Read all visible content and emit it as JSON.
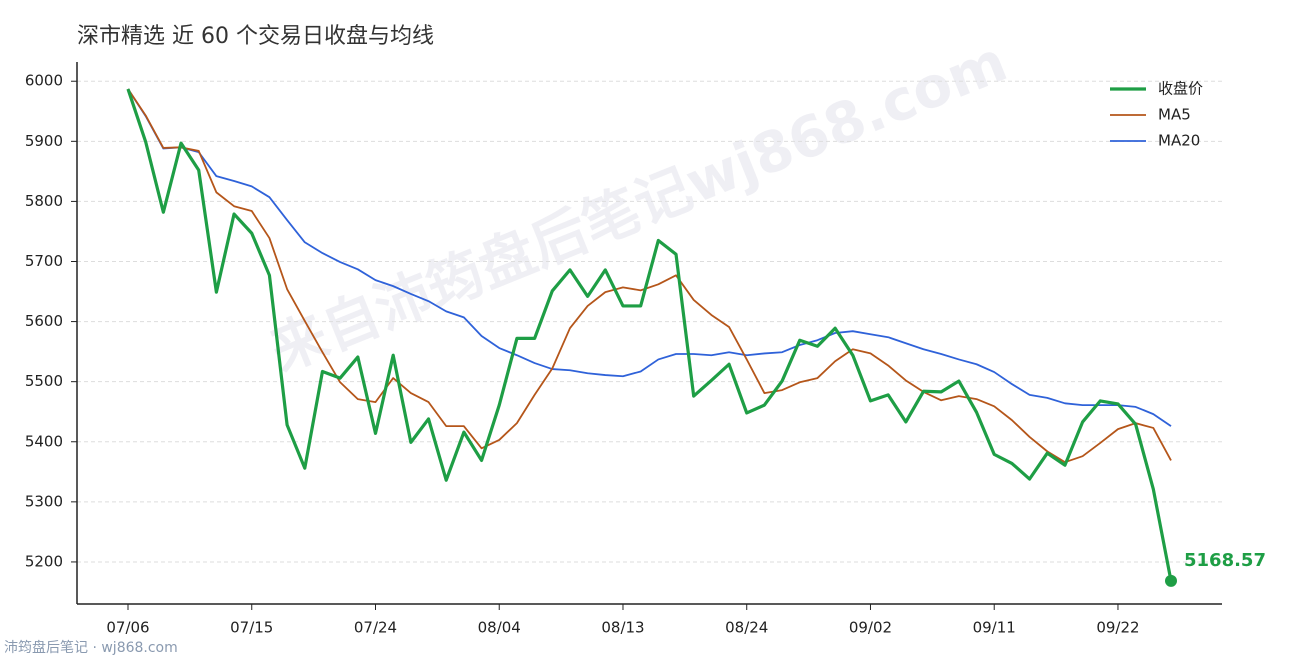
{
  "chart_data": {
    "type": "line",
    "title": "深市精选 近 60 个交易日收盘与均线",
    "watermark": "来自沛筠盘后笔记wj868.com",
    "source": "沛筠盘后笔记 · wj868.com",
    "categories": [
      "07/06",
      null,
      null,
      null,
      null,
      null,
      null,
      "07/15",
      null,
      null,
      null,
      null,
      null,
      null,
      "07/24",
      null,
      null,
      null,
      null,
      null,
      null,
      "08/04",
      null,
      null,
      null,
      null,
      null,
      null,
      "08/13",
      null,
      null,
      null,
      null,
      null,
      null,
      "08/24",
      null,
      null,
      null,
      null,
      null,
      null,
      "09/02",
      null,
      null,
      null,
      null,
      null,
      null,
      "09/11",
      null,
      null,
      null,
      null,
      null,
      null,
      "09/22",
      null,
      null,
      null
    ],
    "series": [
      {
        "name": "收盘价",
        "color": "#1e9e45",
        "values": [
          5987,
          5899,
          5782,
          5897,
          5852,
          5649,
          5779,
          5747,
          5677,
          5428,
          5356,
          5517,
          5506,
          5541,
          5414,
          5544,
          5399,
          5438,
          5336,
          5416,
          5369,
          5461,
          5572,
          5572,
          5651,
          5686,
          5642,
          5686,
          5626,
          5626,
          5735,
          5712,
          5476,
          5502,
          5529,
          5448,
          5461,
          5501,
          5569,
          5559,
          5589,
          5544,
          5468,
          5478,
          5433,
          5484,
          5483,
          5501,
          5449,
          5379,
          5364,
          5338,
          5381,
          5361,
          5433,
          5468,
          5463,
          5429,
          5321,
          5168.57
        ]
      },
      {
        "name": "MA5",
        "color": "#b5561a",
        "values": [
          5987,
          5943,
          5889,
          5890,
          5884,
          5815,
          5792,
          5784,
          5739,
          5654,
          5601,
          5549,
          5499,
          5471,
          5466,
          5506,
          5481,
          5466,
          5426,
          5426,
          5389,
          5403,
          5431,
          5478,
          5522,
          5589,
          5626,
          5649,
          5657,
          5652,
          5662,
          5677,
          5636,
          5611,
          5591,
          5537,
          5481,
          5486,
          5499,
          5506,
          5534,
          5554,
          5547,
          5527,
          5502,
          5483,
          5469,
          5476,
          5471,
          5459,
          5436,
          5408,
          5384,
          5366,
          5376,
          5398,
          5421,
          5431,
          5423,
          5369
        ]
      },
      {
        "name": "MA20",
        "color": "#2f62d9",
        "values": [
          5987,
          5942,
          5888,
          5890,
          5882,
          5842,
          5834,
          5825,
          5807,
          5769,
          5732,
          5714,
          5699,
          5687,
          5669,
          5659,
          5646,
          5634,
          5617,
          5607,
          5576,
          5556,
          5544,
          5531,
          5521,
          5519,
          5514,
          5511,
          5509,
          5517,
          5537,
          5546,
          5546,
          5544,
          5549,
          5544,
          5547,
          5549,
          5561,
          5569,
          5581,
          5584,
          5579,
          5574,
          5564,
          5554,
          5546,
          5537,
          5529,
          5516,
          5496,
          5478,
          5473,
          5464,
          5461,
          5461,
          5461,
          5458,
          5446,
          5426
        ]
      }
    ],
    "ylim": [
      5130,
      6032
    ],
    "yticks": [
      5200,
      5300,
      5400,
      5500,
      5600,
      5700,
      5800,
      5900,
      6000
    ],
    "grid": true,
    "legend": "top-right"
  }
}
